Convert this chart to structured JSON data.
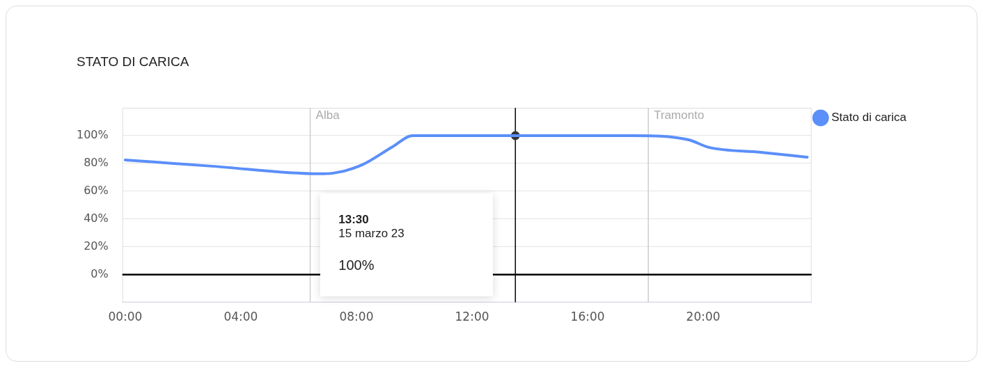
{
  "chart_data": {
    "type": "line",
    "title": "STATO DI CARICA",
    "x": [
      0,
      3,
      6.7,
      7.2,
      8.2,
      9.25,
      9.95,
      17.6,
      19.5,
      20.2,
      22,
      23.6
    ],
    "series": [
      {
        "name": "Stato di carica",
        "color": "#5b8ff9",
        "values": [
          82.5,
          78,
          72.5,
          73,
          79,
          92,
          100,
          100,
          97,
          91.5,
          88,
          84.5
        ]
      },
      {
        "type": "scatter",
        "color": "#333333",
        "x": [
          13.5
        ],
        "values": [
          100
        ],
        "marker": "circle"
      }
    ],
    "xlim": [
      -0.1,
      23.75
    ],
    "xticks": [
      {
        "value": 0,
        "label": "00:00"
      },
      {
        "value": 4,
        "label": "04:00"
      },
      {
        "value": 8,
        "label": "08:00"
      },
      {
        "value": 12,
        "label": "12:00"
      },
      {
        "value": 16,
        "label": "16:00"
      },
      {
        "value": 20,
        "label": "20:00"
      }
    ],
    "ylim": [
      -20,
      120
    ],
    "yticks": [
      {
        "value": -20,
        "label": null
      },
      {
        "value": 0,
        "label": "0%"
      },
      {
        "value": 20,
        "label": "20%"
      },
      {
        "value": 40,
        "label": "40%"
      },
      {
        "value": 60,
        "label": "60%"
      },
      {
        "value": 80,
        "label": "80%"
      },
      {
        "value": 100,
        "label": "100%"
      },
      {
        "value": 120,
        "label": null
      }
    ],
    "ref_lines": [
      {
        "axis": "x",
        "value": 6.4,
        "label": "Alba",
        "color": "#cccccc"
      },
      {
        "axis": "x",
        "value": 18.1,
        "label": "Tramonto",
        "color": "#cccccc"
      },
      {
        "axis": "x",
        "value": 13.5,
        "color": "#000000"
      },
      {
        "axis": "y",
        "value": 0,
        "color": "#000000"
      }
    ],
    "annotations": [
      "13:30",
      "15 marzo 23",
      "100%"
    ],
    "grid": "y",
    "legend": "top right",
    "marker": "none",
    "line_style": "solid"
  }
}
